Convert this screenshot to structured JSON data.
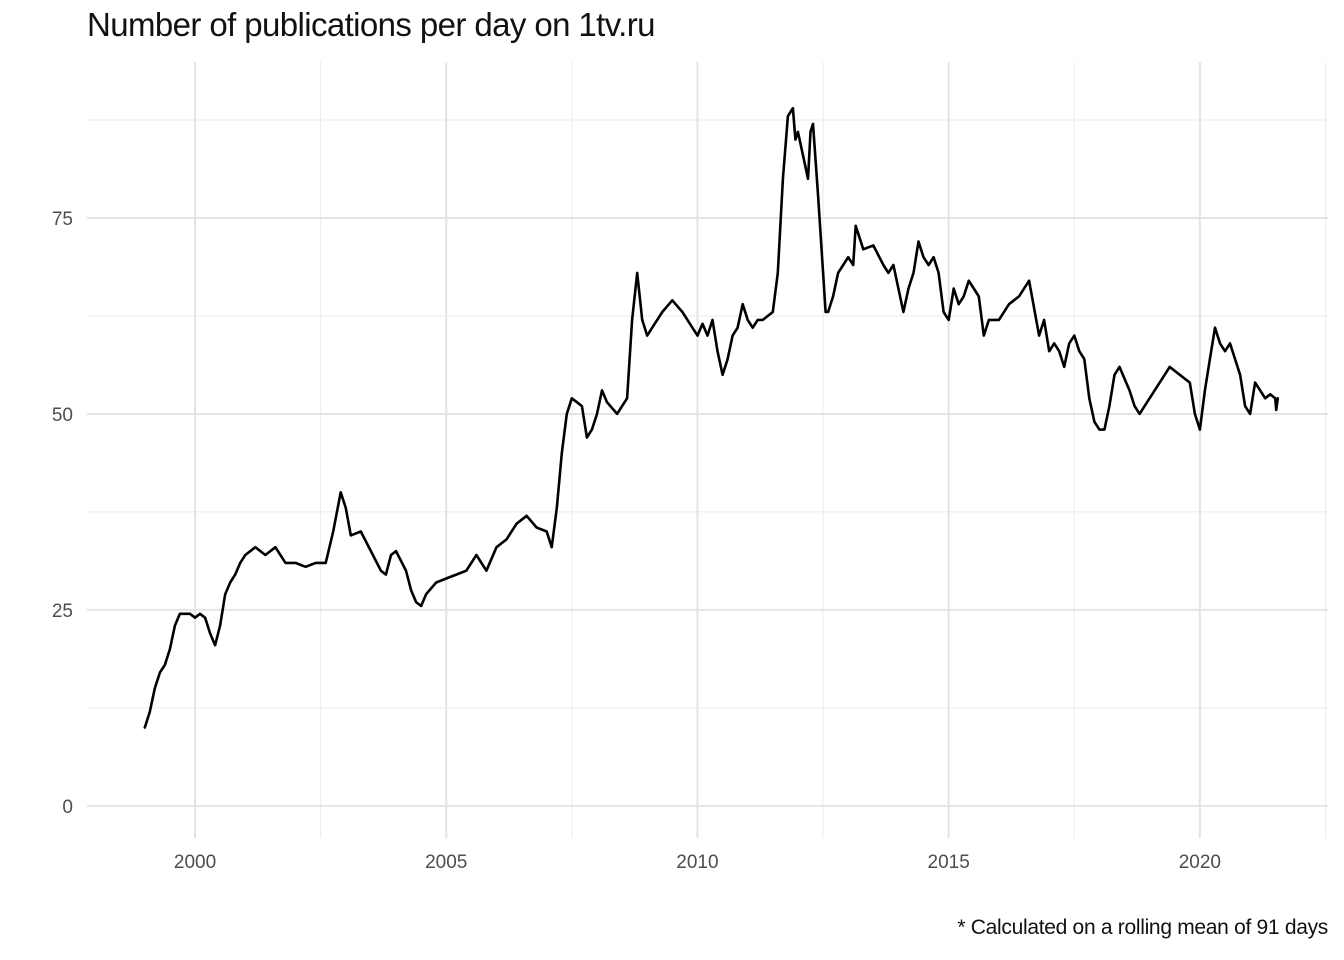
{
  "chart_data": {
    "type": "line",
    "title": "Number of publications per day on 1tv.ru",
    "caption": "* Calculated on a rolling mean of 91 days",
    "xlabel": "",
    "ylabel": "",
    "x_ticks": [
      2000,
      2005,
      2010,
      2015,
      2020
    ],
    "y_ticks": [
      0,
      25,
      50,
      75
    ],
    "x_tick_labels": [
      "2000",
      "2005",
      "2010",
      "2015",
      "2020"
    ],
    "y_tick_labels": [
      "0",
      "25",
      "50",
      "75"
    ],
    "xlim": [
      1997.85,
      2022.55
    ],
    "ylim": [
      -4.1,
      94.9
    ],
    "grid": true,
    "line_color": "#000000",
    "series": [
      {
        "x": [
          1999.0,
          1999.1,
          1999.2,
          1999.3,
          1999.4,
          1999.5,
          1999.6,
          1999.7,
          1999.8,
          1999.9,
          2000.0,
          2000.1,
          2000.2,
          2000.3,
          2000.4,
          2000.5,
          2000.6,
          2000.7,
          2000.8,
          2000.9,
          2001.0,
          2001.2,
          2001.4,
          2001.6,
          2001.8,
          2002.0,
          2002.2,
          2002.4,
          2002.6,
          2002.75,
          2002.9,
          2003.0,
          2003.1,
          2003.3,
          2003.5,
          2003.7,
          2003.8,
          2003.9,
          2004.0,
          2004.2,
          2004.3,
          2004.4,
          2004.5,
          2004.6,
          2004.8,
          2005.0,
          2005.2,
          2005.4,
          2005.6,
          2005.8,
          2006.0,
          2006.2,
          2006.4,
          2006.6,
          2006.8,
          2007.0,
          2007.1,
          2007.2,
          2007.3,
          2007.4,
          2007.5,
          2007.6,
          2007.7,
          2007.8,
          2007.9,
          2008.0,
          2008.1,
          2008.2,
          2008.4,
          2008.5,
          2008.6,
          2008.7,
          2008.8,
          2008.9,
          2009.0,
          2009.1,
          2009.3,
          2009.5,
          2009.7,
          2009.9,
          2010.0,
          2010.1,
          2010.2,
          2010.3,
          2010.4,
          2010.5,
          2010.6,
          2010.7,
          2010.8,
          2010.9,
          2011.0,
          2011.1,
          2011.2,
          2011.3,
          2011.5,
          2011.6,
          2011.7,
          2011.8,
          2011.9,
          2011.95,
          2012.0,
          2012.1,
          2012.2,
          2012.25,
          2012.3,
          2012.4,
          2012.5,
          2012.55,
          2012.6,
          2012.7,
          2012.8,
          2012.9,
          2013.0,
          2013.1,
          2013.15,
          2013.3,
          2013.5,
          2013.7,
          2013.8,
          2013.9,
          2014.0,
          2014.1,
          2014.2,
          2014.3,
          2014.4,
          2014.5,
          2014.6,
          2014.7,
          2014.8,
          2014.9,
          2015.0,
          2015.1,
          2015.2,
          2015.3,
          2015.4,
          2015.5,
          2015.6,
          2015.7,
          2015.8,
          2015.9,
          2016.0,
          2016.2,
          2016.4,
          2016.6,
          2016.8,
          2016.9,
          2017.0,
          2017.1,
          2017.2,
          2017.3,
          2017.4,
          2017.5,
          2017.6,
          2017.7,
          2017.8,
          2017.9,
          2018.0,
          2018.1,
          2018.2,
          2018.3,
          2018.4,
          2018.6,
          2018.7,
          2018.8,
          2018.9,
          2019.0,
          2019.2,
          2019.4,
          2019.6,
          2019.8,
          2019.9,
          2020.0,
          2020.1,
          2020.2,
          2020.3,
          2020.4,
          2020.5,
          2020.6,
          2020.8,
          2020.9,
          2021.0,
          2021.1,
          2021.2,
          2021.3,
          2021.4,
          2021.5,
          2021.52,
          2021.55
        ],
        "y": [
          10,
          12,
          15,
          17,
          18,
          20,
          23,
          24.5,
          24.5,
          24.5,
          24,
          24.5,
          24,
          22,
          20.5,
          23,
          27,
          28.5,
          29.5,
          31,
          32,
          33,
          32,
          33,
          31,
          31,
          30.5,
          31,
          31,
          35,
          40,
          38,
          34.5,
          35,
          32.5,
          30,
          29.5,
          32,
          32.5,
          30,
          27.5,
          26,
          25.5,
          27,
          28.5,
          29,
          29.5,
          30,
          32,
          30,
          33,
          34,
          36,
          37,
          35.5,
          35,
          33,
          38,
          45,
          50,
          52,
          51.5,
          51,
          47,
          48,
          50,
          53,
          51.5,
          50,
          51,
          52,
          62,
          68,
          62,
          60,
          61,
          63,
          64.5,
          63,
          61,
          60,
          61.5,
          60,
          62,
          58,
          55,
          57,
          60,
          61,
          64,
          62,
          61,
          62,
          62,
          63,
          68,
          80,
          88,
          89,
          85,
          86,
          83,
          80,
          86,
          87,
          78,
          68,
          63,
          63,
          65,
          68,
          69,
          70,
          69,
          74,
          71,
          71.5,
          69,
          68,
          69,
          66,
          63,
          66,
          68,
          72,
          70,
          69,
          70,
          68,
          63,
          62,
          66,
          64,
          65,
          67,
          66,
          65,
          60,
          62,
          62,
          62,
          64,
          65,
          67,
          60,
          62,
          58,
          59,
          58,
          56,
          59,
          60,
          58,
          57,
          52,
          49,
          48,
          48,
          51,
          55,
          56,
          53,
          51,
          50,
          51,
          52,
          54,
          56,
          55,
          54,
          50,
          48,
          53,
          57,
          61,
          59,
          58,
          59,
          55,
          51,
          50,
          54,
          53,
          52,
          52.5,
          52,
          50.5,
          52
        ]
      }
    ]
  }
}
